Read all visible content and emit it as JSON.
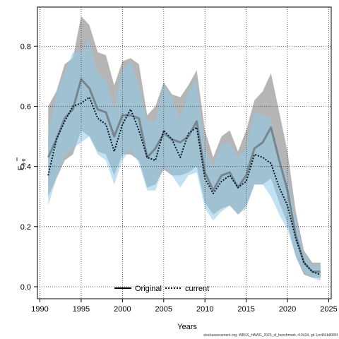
{
  "chart_data": {
    "type": "line",
    "xlabel": "Years",
    "ylabel_main": "F",
    "ylabel_sub": "3-6",
    "xlim": [
      1989.7,
      2025.3
    ],
    "ylim": [
      -0.04,
      0.93
    ],
    "x_ticks": [
      1990,
      1995,
      2000,
      2005,
      2010,
      2015,
      2020,
      2025
    ],
    "y_ticks": [
      0.0,
      0.2,
      0.4,
      0.6,
      0.8
    ],
    "y_tick_labels": [
      "0.0",
      "0.2",
      "0.4",
      "0.6",
      "0.8"
    ],
    "grid": true,
    "legend_position": "bottom-center",
    "x": [
      1991,
      1992,
      1993,
      1994,
      1995,
      1996,
      1997,
      1998,
      1999,
      2000,
      2001,
      2002,
      2003,
      2004,
      2005,
      2006,
      2007,
      2008,
      2009,
      2010,
      2011,
      2012,
      2013,
      2014,
      2015,
      2016,
      2017,
      2018,
      2019,
      2020,
      2021,
      2022,
      2023,
      2024
    ],
    "series": [
      {
        "name": "Original",
        "line_color": "#555555",
        "band_color": "#a8a8a8",
        "dash": "solid",
        "values": [
          0.43,
          0.49,
          0.56,
          0.59,
          0.69,
          0.66,
          0.59,
          0.58,
          0.5,
          0.57,
          0.57,
          0.56,
          0.43,
          0.46,
          0.51,
          0.49,
          0.48,
          0.5,
          0.55,
          0.38,
          0.32,
          0.37,
          0.38,
          0.33,
          0.37,
          0.46,
          0.48,
          0.53,
          0.42,
          0.32,
          0.17,
          0.08,
          0.05,
          0.05
        ],
        "lower": [
          0.3,
          0.36,
          0.42,
          0.44,
          0.52,
          0.5,
          0.45,
          0.44,
          0.37,
          0.44,
          0.44,
          0.42,
          0.33,
          0.34,
          0.39,
          0.37,
          0.37,
          0.38,
          0.4,
          0.28,
          0.24,
          0.26,
          0.27,
          0.24,
          0.27,
          0.34,
          0.34,
          0.36,
          0.28,
          0.21,
          0.1,
          0.04,
          0.03,
          0.03
        ],
        "upper": [
          0.6,
          0.65,
          0.74,
          0.76,
          0.9,
          0.87,
          0.78,
          0.77,
          0.67,
          0.75,
          0.76,
          0.74,
          0.57,
          0.6,
          0.68,
          0.64,
          0.63,
          0.67,
          0.72,
          0.52,
          0.43,
          0.5,
          0.52,
          0.45,
          0.52,
          0.62,
          0.65,
          0.71,
          0.58,
          0.45,
          0.25,
          0.12,
          0.08,
          0.08
        ]
      },
      {
        "name": "current",
        "line_color": "#001830",
        "band_color": "#8ecbea",
        "dash": "dotted",
        "values": [
          0.37,
          0.49,
          0.55,
          0.6,
          0.61,
          0.63,
          0.56,
          0.54,
          0.45,
          0.54,
          0.59,
          0.52,
          0.43,
          0.42,
          0.52,
          0.49,
          0.43,
          0.51,
          0.53,
          0.36,
          0.31,
          0.35,
          0.37,
          0.33,
          0.35,
          0.44,
          0.43,
          0.41,
          0.33,
          0.27,
          0.16,
          0.08,
          0.05,
          0.04
        ],
        "lower": [
          0.27,
          0.36,
          0.43,
          0.46,
          0.48,
          0.5,
          0.44,
          0.42,
          0.34,
          0.42,
          0.46,
          0.41,
          0.32,
          0.32,
          0.4,
          0.37,
          0.33,
          0.37,
          0.38,
          0.26,
          0.22,
          0.25,
          0.27,
          0.24,
          0.26,
          0.34,
          0.34,
          0.3,
          0.24,
          0.19,
          0.1,
          0.05,
          0.03,
          0.02
        ],
        "upper": [
          0.5,
          0.64,
          0.71,
          0.78,
          0.78,
          0.82,
          0.71,
          0.69,
          0.59,
          0.72,
          0.75,
          0.67,
          0.55,
          0.55,
          0.67,
          0.63,
          0.56,
          0.65,
          0.69,
          0.46,
          0.4,
          0.47,
          0.48,
          0.43,
          0.46,
          0.58,
          0.57,
          0.56,
          0.44,
          0.36,
          0.23,
          0.11,
          0.07,
          0.07
        ]
      }
    ]
  },
  "footer": "stockassessment.org, WBSS_HAWG_2025_sf_benchmark, r19404, git 1cc464b8086f"
}
